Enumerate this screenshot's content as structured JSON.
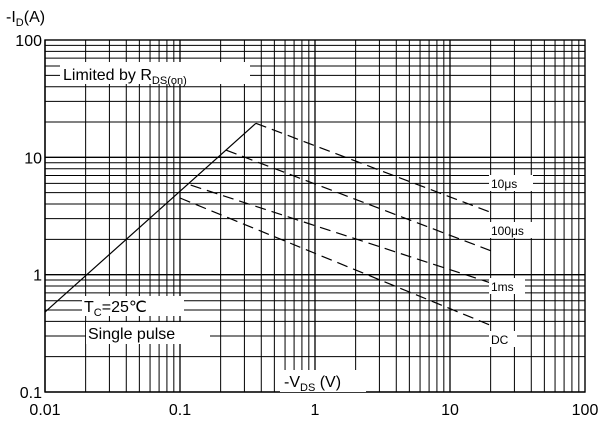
{
  "chart_data": {
    "type": "line",
    "ylabel": {
      "prefix": "-I",
      "sub": "D",
      "suffix": "(A)"
    },
    "xlabel": {
      "prefix": "-V",
      "sub": "DS",
      "suffix": " (V)"
    },
    "x_scale": "log",
    "y_scale": "log",
    "xlim": [
      0.01,
      100
    ],
    "ylim": [
      0.1,
      100
    ],
    "x_ticks": [
      "0.01",
      "0.1",
      "1",
      "10",
      "100"
    ],
    "y_ticks": [
      "0.1",
      "1",
      "10",
      "100"
    ],
    "grid": true,
    "annotations": {
      "limited": {
        "prefix": "Limited by R",
        "sub": "DS(on)"
      },
      "temp": {
        "prefix": "T",
        "sub": "C",
        "suffix": "=25℃"
      },
      "pulse": "Single pulse"
    },
    "series": [
      {
        "name": "",
        "style": "solid",
        "x": [
          0.01,
          0.365
        ],
        "y": [
          0.48,
          19.5
        ]
      },
      {
        "name": "10μs",
        "style": "dashed",
        "x": [
          0.365,
          20
        ],
        "y": [
          19.5,
          3.4
        ]
      },
      {
        "name": "100μs",
        "style": "dashed",
        "x": [
          0.22,
          20
        ],
        "y": [
          11.5,
          1.6
        ]
      },
      {
        "name": "1ms",
        "style": "dashed",
        "x": [
          0.12,
          20
        ],
        "y": [
          5.8,
          0.85
        ]
      },
      {
        "name": "DC",
        "style": "dashed",
        "x": [
          0.1,
          20
        ],
        "y": [
          4.5,
          0.37
        ]
      }
    ]
  }
}
